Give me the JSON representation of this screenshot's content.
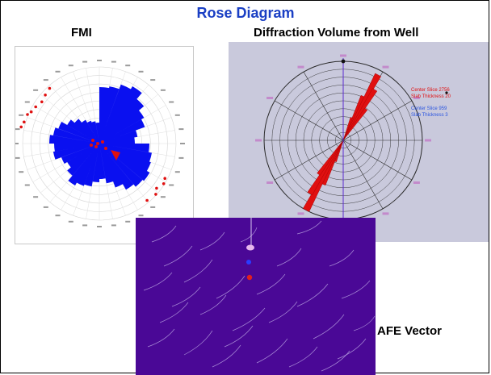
{
  "header": {
    "title": "Rose Diagram"
  },
  "fmi": {
    "label": "FMI"
  },
  "diffraction": {
    "label": "Diffraction Volume from Well",
    "legend": {
      "red_center": "Center Slice 2756",
      "red_thickness": "Slab Thickness 20",
      "blue_center": "Center Slice 959",
      "blue_thickness": "Slab Thickness 3"
    }
  },
  "afe": {
    "label": "AFE Vector"
  },
  "colors": {
    "title": "#1a3fc4",
    "fmi_rose": "#0a10f0",
    "fmi_points": "#e01010",
    "diffraction_rose": "#e01010",
    "diffraction_bg": "#c9c9dc",
    "afe_bg": "#4a0896",
    "afe_lines": "#b7a0e0"
  }
}
